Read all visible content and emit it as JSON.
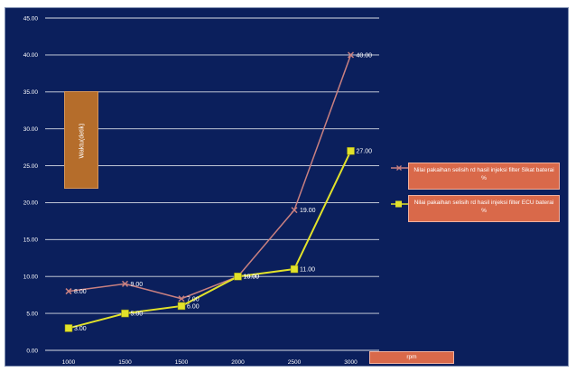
{
  "chart_data": {
    "type": "line",
    "title": "",
    "xlabel": "rpm",
    "ylabel": "Waktu(detik)",
    "categories": [
      "1000",
      "1500",
      "1500",
      "2000",
      "2500",
      "3000"
    ],
    "ylim": [
      0,
      45
    ],
    "yticks": [
      "0.00",
      "5.00",
      "10.00",
      "15.00",
      "20.00",
      "25.00",
      "30.00",
      "35.00",
      "40.00",
      "45.00"
    ],
    "grid": true,
    "legend_position": "right",
    "series": [
      {
        "name": "Nilai pakaihan selisih rd hasil injeksi filter Sikat baterai %",
        "color": "#c98080",
        "marker": "x",
        "values": [
          8.0,
          9.0,
          7.0,
          10.0,
          19.0,
          40.0
        ],
        "labels": [
          "8.00",
          "9.00",
          "7.00",
          "10.00",
          "19.00",
          "40.00"
        ]
      },
      {
        "name": "Nilai pakaihan selisih rd hasil injeksi filter ECU baterai %",
        "color": "#e2e22a",
        "marker": "square",
        "values": [
          3.0,
          5.0,
          6.0,
          10.0,
          11.0,
          27.0
        ],
        "labels": [
          "3.00",
          "5.00",
          "6.00",
          "10.00",
          "11.00",
          "27.00"
        ]
      }
    ]
  }
}
